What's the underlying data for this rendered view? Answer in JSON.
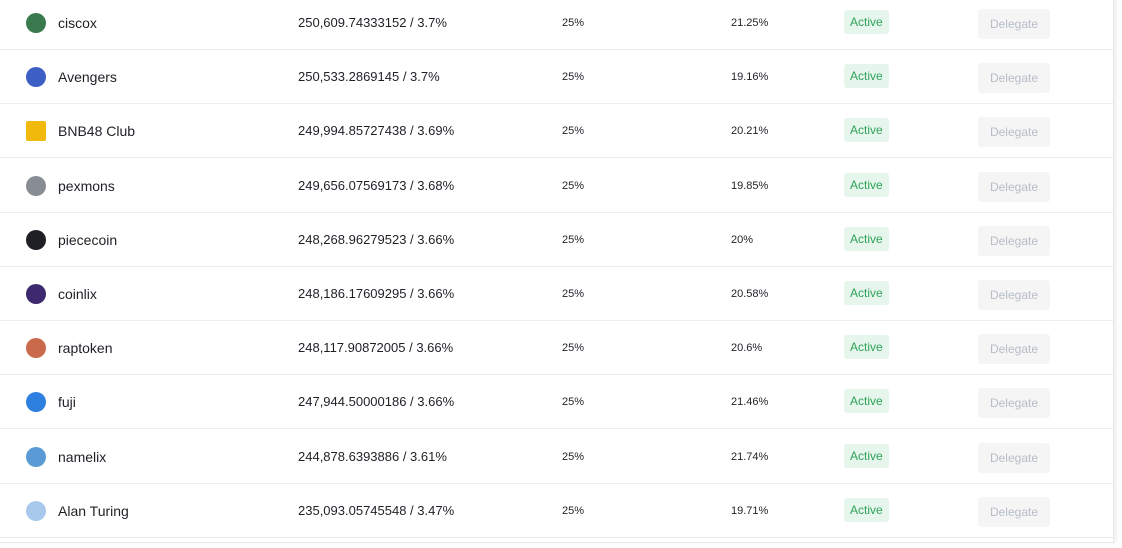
{
  "table": {
    "rows": [
      [
        "ciscox",
        "250,609.74333152 / 3.7%",
        "25%",
        "21.25%",
        "Active",
        "Delegate"
      ],
      [
        "Avengers",
        "250,533.2869145 / 3.7%",
        "25%",
        "19.16%",
        "Active",
        "Delegate"
      ],
      [
        "BNB48 Club",
        "249,994.85727438 / 3.69%",
        "25%",
        "20.21%",
        "Active",
        "Delegate"
      ],
      [
        "pexmons",
        "249,656.07569173 / 3.68%",
        "25%",
        "19.85%",
        "Active",
        "Delegate"
      ],
      [
        "piececoin",
        "248,268.96279523 / 3.66%",
        "25%",
        "20%",
        "Active",
        "Delegate"
      ],
      [
        "coinlix",
        "248,186.17609295 / 3.66%",
        "25%",
        "20.58%",
        "Active",
        "Delegate"
      ],
      [
        "raptoken",
        "248,117.90872005 / 3.66%",
        "25%",
        "20.6%",
        "Active",
        "Delegate"
      ],
      [
        "fuji",
        "247,944.50000186 / 3.66%",
        "25%",
        "21.46%",
        "Active",
        "Delegate"
      ],
      [
        "namelix",
        "244,878.6393886 / 3.61%",
        "25%",
        "21.74%",
        "Active",
        "Delegate"
      ],
      [
        "Alan Turing",
        "235,093.05745548 / 3.47%",
        "25%",
        "19.71%",
        "Active",
        "Delegate"
      ]
    ]
  }
}
